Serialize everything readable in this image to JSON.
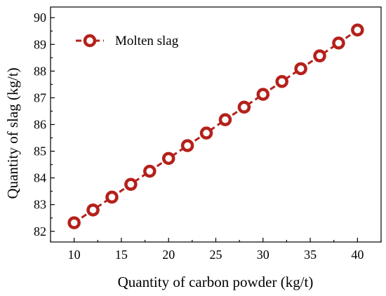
{
  "chart_data": {
    "type": "line",
    "title": "",
    "xlabel": "Quantity of carbon powder (kg/t)",
    "ylabel": "Quantity of slag (kg/t)",
    "xlim": [
      7.5,
      42.5
    ],
    "ylim": [
      81.6,
      90.4
    ],
    "xticks": [
      10,
      15,
      20,
      25,
      30,
      35,
      40
    ],
    "yticks": [
      82,
      83,
      84,
      85,
      86,
      87,
      88,
      89,
      90
    ],
    "grid": false,
    "legend_position": "top-left",
    "series": [
      {
        "name": "Molten slag",
        "color": "#b5201b",
        "marker": "open-circle",
        "line_style": "dashed",
        "x": [
          10,
          12,
          14,
          16,
          18,
          20,
          22,
          24,
          26,
          28,
          30,
          32,
          34,
          36,
          38,
          40
        ],
        "y": [
          82.32,
          82.8,
          83.28,
          83.76,
          84.25,
          84.73,
          85.21,
          85.68,
          86.18,
          86.65,
          87.13,
          87.61,
          88.09,
          88.57,
          89.05,
          89.54
        ]
      }
    ]
  }
}
